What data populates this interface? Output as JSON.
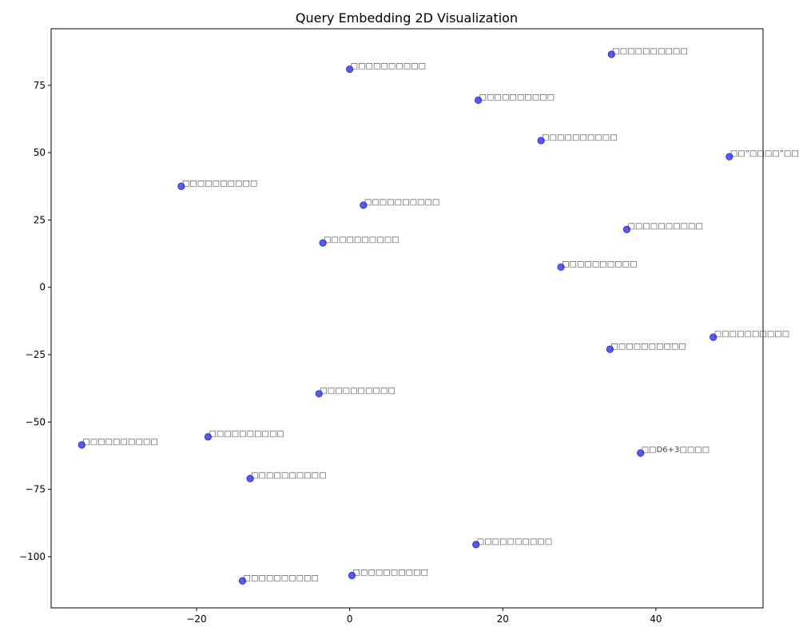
{
  "chart_data": {
    "type": "scatter",
    "title": "Query Embedding 2D Visualization",
    "xlabel": "",
    "ylabel": "",
    "xlim": [
      -39,
      54
    ],
    "ylim": [
      -119,
      96
    ],
    "x_ticks": [
      -20,
      0,
      20,
      40
    ],
    "y_ticks": [
      -100,
      -75,
      -50,
      -25,
      0,
      25,
      50,
      75
    ],
    "grid": false,
    "marker_color": "#0000ff",
    "marker_opacity": 0.65,
    "points": [
      {
        "x": 34.2,
        "y": 86.5,
        "label": "□□□□□□□□□□"
      },
      {
        "x": 0.0,
        "y": 81.0,
        "label": "□□□□□□□□□□"
      },
      {
        "x": 16.8,
        "y": 69.5,
        "label": "□□□□□□□□□□"
      },
      {
        "x": 25.0,
        "y": 54.5,
        "label": "□□□□□□□□□□"
      },
      {
        "x": 49.6,
        "y": 48.5,
        "label": "□□“□□□□”□□"
      },
      {
        "x": -22.0,
        "y": 37.5,
        "label": "□□□□□□□□□□"
      },
      {
        "x": 1.8,
        "y": 30.5,
        "label": "□□□□□□□□□□"
      },
      {
        "x": 36.2,
        "y": 21.5,
        "label": "□□□□□□□□□□"
      },
      {
        "x": -3.5,
        "y": 16.5,
        "label": "□□□□□□□□□□"
      },
      {
        "x": 27.6,
        "y": 7.5,
        "label": "□□□□□□□□□□"
      },
      {
        "x": 47.5,
        "y": -18.5,
        "label": "□□□□□□□□□□"
      },
      {
        "x": 34.0,
        "y": -23.0,
        "label": "□□□□□□□□□□"
      },
      {
        "x": -4.0,
        "y": -39.5,
        "label": "□□□□□□□□□□"
      },
      {
        "x": -18.5,
        "y": -55.5,
        "label": "□□□□□□□□□□"
      },
      {
        "x": -35.0,
        "y": -58.5,
        "label": "□□□□□□□□□□"
      },
      {
        "x": 38.0,
        "y": -61.5,
        "label": "□□D6+3□□□□"
      },
      {
        "x": -13.0,
        "y": -71.0,
        "label": "□□□□□□□□□□"
      },
      {
        "x": 16.5,
        "y": -95.5,
        "label": "□□□□□□□□□□"
      },
      {
        "x": 0.3,
        "y": -107.0,
        "label": "□□□□□□□□□□"
      },
      {
        "x": -14.0,
        "y": -109.0,
        "label": "□□□□□□□□□□"
      }
    ]
  }
}
